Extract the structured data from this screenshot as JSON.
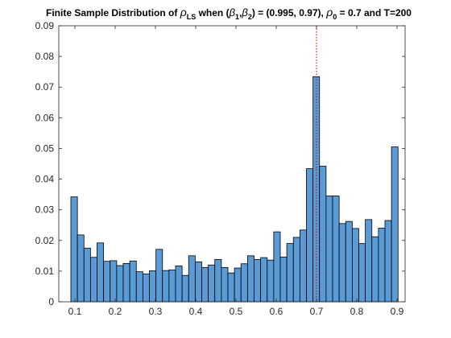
{
  "chart_data": {
    "type": "bar",
    "title": {
      "prefix": "Finite Sample Distribution of ",
      "rho_symbol": "ρ",
      "rho_sub": "LS",
      "middle": " when (",
      "beta1": "β",
      "beta1_sub": "1",
      "comma": ",",
      "beta2": "β",
      "beta2_sub": "2",
      "values_text": ") = (0.995, 0.97), ",
      "rho0": "ρ",
      "rho0_sub": "0",
      "suffix": " = 0.7 and T=200"
    },
    "xlabel": "",
    "ylabel": "",
    "xlim": [
      0.06,
      0.92
    ],
    "ylim": [
      0,
      0.09
    ],
    "xticks": [
      0.1,
      0.2,
      0.3,
      0.4,
      0.5,
      0.6,
      0.7,
      0.8,
      0.9
    ],
    "xtick_labels": [
      "0.1",
      "0.2",
      "0.3",
      "0.4",
      "0.5",
      "0.6",
      "0.7",
      "0.8",
      "0.9"
    ],
    "yticks": [
      0,
      0.01,
      0.02,
      0.03,
      0.04,
      0.05,
      0.06,
      0.07,
      0.08,
      0.09
    ],
    "ytick_labels": [
      "0",
      "0.01",
      "0.02",
      "0.03",
      "0.04",
      "0.05",
      "0.06",
      "0.07",
      "0.08",
      "0.09"
    ],
    "bin_start": 0.09,
    "bin_width": 0.01625,
    "values": [
      0.0342,
      0.0218,
      0.0175,
      0.0145,
      0.0192,
      0.0132,
      0.0134,
      0.0118,
      0.0125,
      0.0133,
      0.0098,
      0.0091,
      0.0101,
      0.0171,
      0.0102,
      0.0104,
      0.0117,
      0.0086,
      0.015,
      0.013,
      0.0112,
      0.012,
      0.0138,
      0.0112,
      0.0094,
      0.011,
      0.0124,
      0.015,
      0.0138,
      0.0144,
      0.0136,
      0.0228,
      0.0146,
      0.019,
      0.021,
      0.0234,
      0.0434,
      0.0734,
      0.0442,
      0.0345,
      0.0345,
      0.0255,
      0.0262,
      0.0239,
      0.019,
      0.0268,
      0.0212,
      0.024,
      0.0265,
      0.0505
    ],
    "reference_line_x": 0.7,
    "colors": {
      "bar_fill": "#5b9bd5",
      "bar_edge": "#000000",
      "reference_line": "#c00000",
      "axes": "#262626"
    },
    "grid": false
  }
}
